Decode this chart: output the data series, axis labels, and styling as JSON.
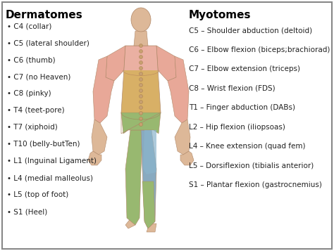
{
  "title_left": "Dermatomes",
  "title_right": "Myotomes",
  "background_color": "#ffffff",
  "border_color": "#888888",
  "title_fontsize": 11,
  "text_fontsize": 7.5,
  "myotomes_fontsize": 7.5,
  "dermatomes": [
    "• C4 (collar)",
    "• C5 (lateral shoulder)",
    "• C6 (thumb)",
    "• C7 (no Heaven)",
    "• C8 (pinky)",
    "• T4 (teet-pore)",
    "• T7 (xiphoid)",
    "• T10 (belly-butTen)",
    "• L1 (Inguinal Ligament)",
    "• L4 (medial malleolus)",
    "• L5 (top of foot)",
    "• S1 (Heel)"
  ],
  "myotomes": [
    "C5 – Shoulder abduction (deltoid)",
    "C6 – Elbow flexion (biceps;brachiorad)",
    "C7 – Elbow extension (triceps)",
    "C8 – Wrist flexion (FDS)",
    "T1 – Finger abduction (DABs)",
    "L2 – Hip flexion (iliopsoas)",
    "L4 – Knee extension (quad fem)",
    "L5 – Dorsiflexion (tibialis anterior)",
    "S1 – Plantar flexion (gastrocnemius)"
  ],
  "body_colors": {
    "pink_upper": "#e8a898",
    "orange_mid": "#d4a855",
    "green_lower": "#98b870",
    "blue_patch": "#88aac0",
    "skin_base": "#ddb898",
    "skin_outline": "#b08868"
  },
  "fig_width": 4.74,
  "fig_height": 3.57,
  "dpi": 100
}
